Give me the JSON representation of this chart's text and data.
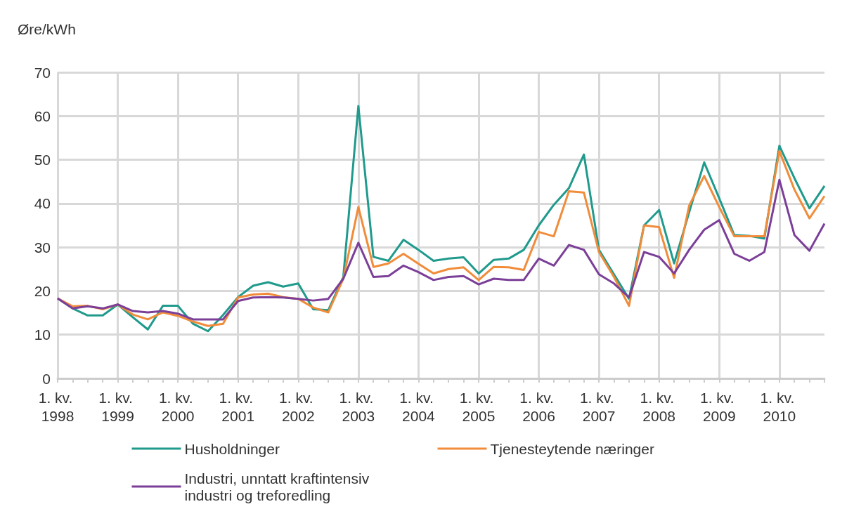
{
  "chart_data": {
    "type": "line",
    "ylabel": "Øre/kWh",
    "categories": [
      "1. kv. 1998",
      null,
      null,
      null,
      "1. kv. 1999",
      null,
      null,
      null,
      "1. kv. 2000",
      null,
      null,
      null,
      "1. kv. 2001",
      null,
      null,
      null,
      "1. kv. 2002",
      null,
      null,
      null,
      "1. kv. 2003",
      null,
      null,
      null,
      "1. kv. 2004",
      null,
      null,
      null,
      "1. kv. 2005",
      null,
      null,
      null,
      "1. kv. 2006",
      null,
      null,
      null,
      "1. kv. 2007",
      null,
      null,
      null,
      "1. kv. 2008",
      null,
      null,
      null,
      "1. kv. 2009",
      null,
      null,
      null,
      "1. kv. 2010",
      null,
      null,
      null
    ],
    "series": [
      {
        "name": "Husholdninger",
        "color": "#1f9a8c",
        "values": [
          18.3,
          16,
          14.4,
          14.4,
          16.9,
          14,
          11.2,
          16.6,
          16.6,
          12.5,
          10.8,
          14.5,
          18.6,
          21.2,
          22,
          21,
          21.7,
          15.8,
          15.6,
          23.2,
          62.3,
          27.8,
          26.9,
          31.7,
          29.4,
          26.9,
          27.4,
          27.7,
          24,
          27.1,
          27.4,
          29.4,
          35,
          39.7,
          43.5,
          51.2,
          29.4,
          23.8,
          18.2,
          35,
          38.5,
          26.3,
          38,
          49.4,
          41.2,
          32.8,
          32.6,
          32,
          53.2,
          45.8,
          38.9,
          44
        ]
      },
      {
        "name": "Tjenesteytende næringer",
        "color": "#f08c3a",
        "values": [
          18.3,
          16.5,
          16.6,
          15.8,
          16.9,
          14.6,
          13.5,
          15.1,
          14.3,
          13,
          12,
          12.5,
          18.5,
          19.2,
          19.4,
          18.6,
          18.2,
          16.2,
          15.1,
          22.8,
          39.2,
          25.5,
          26.3,
          28.5,
          26.2,
          24,
          25,
          25.4,
          22.5,
          25.5,
          25.4,
          24.8,
          33.5,
          32.5,
          42.8,
          42.5,
          28.9,
          23.2,
          16.6,
          35,
          34.6,
          23,
          39.5,
          46.3,
          39.2,
          32.5,
          32.5,
          32.5,
          52,
          43.2,
          36.6,
          41.7
        ]
      },
      {
        "name": "Industri, unntatt kraftintensiv industri og treforedling",
        "color": "#7b3f98",
        "values": [
          18.3,
          16,
          16.5,
          16,
          16.9,
          15.4,
          15.1,
          15.4,
          14.8,
          13.5,
          13.5,
          13.5,
          17.7,
          18.5,
          18.6,
          18.5,
          18.2,
          17.8,
          18.2,
          22.8,
          31,
          23.2,
          23.4,
          25.8,
          24.3,
          22.5,
          23.2,
          23.4,
          21.5,
          22.8,
          22.5,
          22.5,
          27.4,
          25.8,
          30.5,
          29.4,
          23.8,
          21.7,
          18.5,
          28.9,
          27.8,
          24,
          29.4,
          34,
          36.2,
          28.5,
          26.9,
          28.9,
          45.4,
          32.8,
          29.2,
          35.4
        ]
      }
    ],
    "ylim": [
      0,
      70
    ],
    "yticks": [
      0,
      10,
      20,
      30,
      40,
      50,
      60,
      70
    ],
    "grid": true,
    "legend": "bottom",
    "marker": "none",
    "line_style": "solid"
  }
}
